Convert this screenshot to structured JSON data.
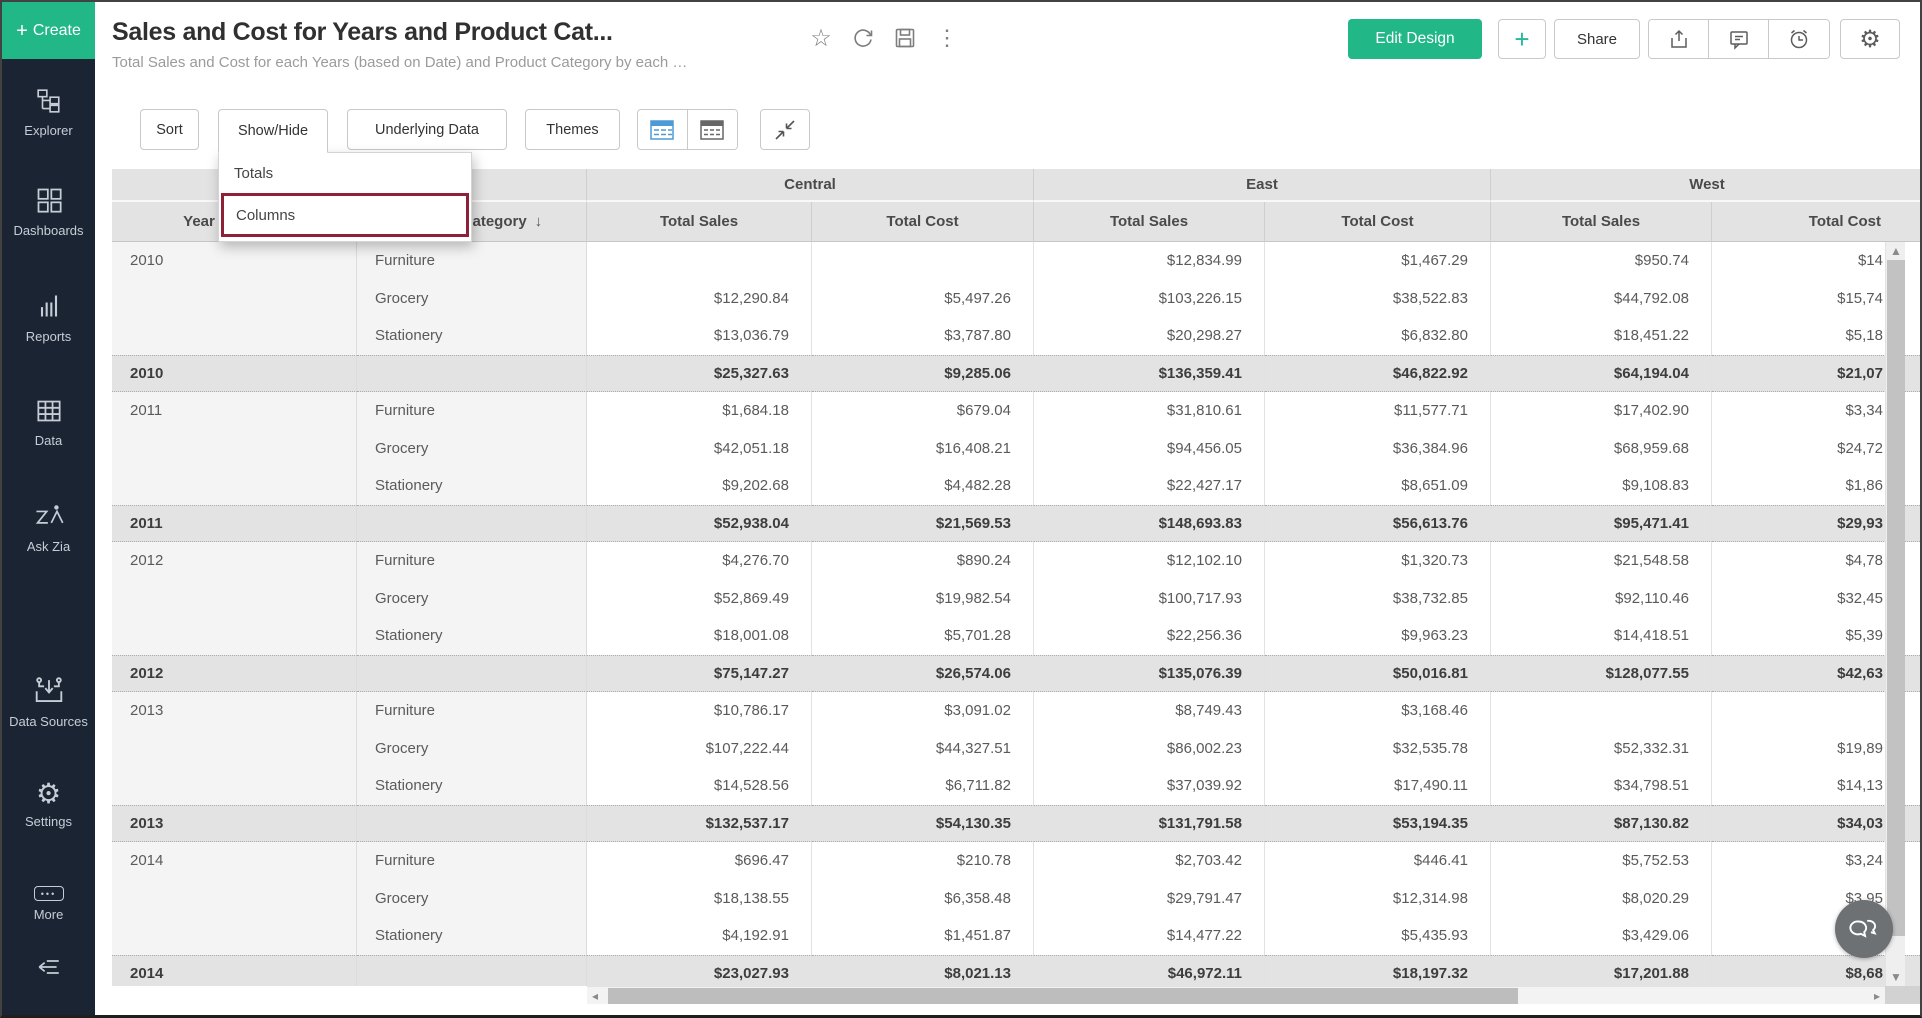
{
  "sidebar": {
    "create_label": "Create",
    "items": [
      {
        "label": "Explorer"
      },
      {
        "label": "Dashboards"
      },
      {
        "label": "Reports"
      },
      {
        "label": "Data"
      },
      {
        "label": "Ask Zia"
      },
      {
        "label": "Data Sources"
      },
      {
        "label": "Settings"
      },
      {
        "label": "More"
      }
    ]
  },
  "header": {
    "title": "Sales and Cost for Years and Product Cat...",
    "subtitle": "Total Sales and Cost for each Years (based on Date) and Product Category by each …",
    "edit_design_label": "Edit Design",
    "plus_label": "+",
    "share_label": "Share"
  },
  "toolbar": {
    "sort_label": "Sort",
    "show_hide_label": "Show/Hide",
    "underlying_data_label": "Underlying Data",
    "themes_label": "Themes"
  },
  "show_hide_menu": {
    "items": [
      {
        "label": "Totals",
        "highlighted": false
      },
      {
        "label": "Columns",
        "highlighted": true
      }
    ],
    "highlight_color": "#8e2038"
  },
  "colors": {
    "accent_green": "#21b786",
    "plus_teal": "#26b99a",
    "sidebar_bg": "#1b2433",
    "highlight_red": "#8e2038",
    "table_icon_blue": "#4d9ad6"
  },
  "table": {
    "year_header": "Year",
    "category_header": "Product Category",
    "sort_arrow": "↓",
    "groups": [
      {
        "label": "Central"
      },
      {
        "label": "East"
      },
      {
        "label": "West"
      }
    ],
    "measures": [
      "Total Sales",
      "Total Cost"
    ],
    "rows": [
      {
        "year": "2010",
        "category": "Furniture",
        "total": false,
        "values": [
          "",
          "",
          "$12,834.99",
          "$1,467.29",
          "$950.74",
          "$14"
        ]
      },
      {
        "year": "",
        "category": "Grocery",
        "total": false,
        "values": [
          "$12,290.84",
          "$5,497.26",
          "$103,226.15",
          "$38,522.83",
          "$44,792.08",
          "$15,74"
        ]
      },
      {
        "year": "",
        "category": "Stationery",
        "total": false,
        "values": [
          "$13,036.79",
          "$3,787.80",
          "$20,298.27",
          "$6,832.80",
          "$18,451.22",
          "$5,18"
        ]
      },
      {
        "year": "2010",
        "category": "",
        "total": true,
        "values": [
          "$25,327.63",
          "$9,285.06",
          "$136,359.41",
          "$46,822.92",
          "$64,194.04",
          "$21,07"
        ]
      },
      {
        "year": "2011",
        "category": "Furniture",
        "total": false,
        "values": [
          "$1,684.18",
          "$679.04",
          "$31,810.61",
          "$11,577.71",
          "$17,402.90",
          "$3,34"
        ]
      },
      {
        "year": "",
        "category": "Grocery",
        "total": false,
        "values": [
          "$42,051.18",
          "$16,408.21",
          "$94,456.05",
          "$36,384.96",
          "$68,959.68",
          "$24,72"
        ]
      },
      {
        "year": "",
        "category": "Stationery",
        "total": false,
        "values": [
          "$9,202.68",
          "$4,482.28",
          "$22,427.17",
          "$8,651.09",
          "$9,108.83",
          "$1,86"
        ]
      },
      {
        "year": "2011",
        "category": "",
        "total": true,
        "values": [
          "$52,938.04",
          "$21,569.53",
          "$148,693.83",
          "$56,613.76",
          "$95,471.41",
          "$29,93"
        ]
      },
      {
        "year": "2012",
        "category": "Furniture",
        "total": false,
        "values": [
          "$4,276.70",
          "$890.24",
          "$12,102.10",
          "$1,320.73",
          "$21,548.58",
          "$4,78"
        ]
      },
      {
        "year": "",
        "category": "Grocery",
        "total": false,
        "values": [
          "$52,869.49",
          "$19,982.54",
          "$100,717.93",
          "$38,732.85",
          "$92,110.46",
          "$32,45"
        ]
      },
      {
        "year": "",
        "category": "Stationery",
        "total": false,
        "values": [
          "$18,001.08",
          "$5,701.28",
          "$22,256.36",
          "$9,963.23",
          "$14,418.51",
          "$5,39"
        ]
      },
      {
        "year": "2012",
        "category": "",
        "total": true,
        "values": [
          "$75,147.27",
          "$26,574.06",
          "$135,076.39",
          "$50,016.81",
          "$128,077.55",
          "$42,63"
        ]
      },
      {
        "year": "2013",
        "category": "Furniture",
        "total": false,
        "values": [
          "$10,786.17",
          "$3,091.02",
          "$8,749.43",
          "$3,168.46",
          "",
          ""
        ]
      },
      {
        "year": "",
        "category": "Grocery",
        "total": false,
        "values": [
          "$107,222.44",
          "$44,327.51",
          "$86,002.23",
          "$32,535.78",
          "$52,332.31",
          "$19,89"
        ]
      },
      {
        "year": "",
        "category": "Stationery",
        "total": false,
        "values": [
          "$14,528.56",
          "$6,711.82",
          "$37,039.92",
          "$17,490.11",
          "$34,798.51",
          "$14,13"
        ]
      },
      {
        "year": "2013",
        "category": "",
        "total": true,
        "values": [
          "$132,537.17",
          "$54,130.35",
          "$131,791.58",
          "$53,194.35",
          "$87,130.82",
          "$34,03"
        ]
      },
      {
        "year": "2014",
        "category": "Furniture",
        "total": false,
        "values": [
          "$696.47",
          "$210.78",
          "$2,703.42",
          "$446.41",
          "$5,752.53",
          "$3,24"
        ]
      },
      {
        "year": "",
        "category": "Grocery",
        "total": false,
        "values": [
          "$18,138.55",
          "$6,358.48",
          "$29,791.47",
          "$12,314.98",
          "$8,020.29",
          "$3,95"
        ]
      },
      {
        "year": "",
        "category": "Stationery",
        "total": false,
        "values": [
          "$4,192.91",
          "$1,451.87",
          "$14,477.22",
          "$5,435.93",
          "$3,429.06",
          "$1,8"
        ]
      },
      {
        "year": "2014",
        "category": "",
        "total": true,
        "values": [
          "$23,027.93",
          "$8,021.13",
          "$46,972.11",
          "$18,197.32",
          "$17,201.88",
          "$8,68"
        ]
      }
    ]
  }
}
